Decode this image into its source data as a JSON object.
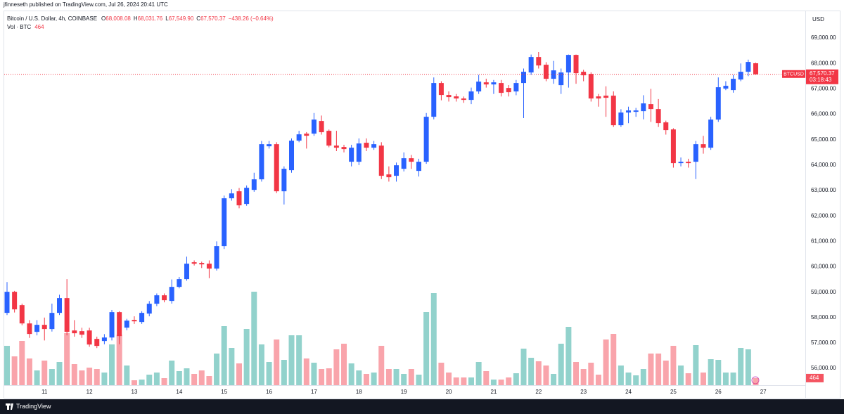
{
  "header": {
    "byline": "jfinneseth published on TradingView.com, Jul 26, 2024 20:41 UTC"
  },
  "footer": {
    "brand": "TradingView"
  },
  "chart_data": {
    "type": "candlestick",
    "legend": {
      "symbol": "Bitcoin / U.S. Dollar, 4h, COINBASE",
      "fields": [
        {
          "label": "O",
          "text": "68,008.08"
        },
        {
          "label": "H",
          "text": "68,031.76"
        },
        {
          "label": "L",
          "text": "67,549.90"
        },
        {
          "label": "C",
          "text": "67,570.37"
        }
      ],
      "change": "−438.26 (−0.64%)",
      "volume_title": "Vol · BTC",
      "volume_text": "464"
    },
    "axis_currency": "USD",
    "price_tag": "BTCUSD",
    "last_price_label": "67,570.37",
    "countdown": "03:18:43",
    "volume_label": "464",
    "up_color": "#2962ff",
    "down_color": "#f23645",
    "volume_up_color": "rgba(38,166,154,0.5)",
    "volume_down_color": "rgba(242,54,69,0.45)",
    "categories": [
      null,
      null,
      null,
      null,
      null,
      "11",
      null,
      null,
      null,
      null,
      null,
      "12",
      null,
      null,
      null,
      null,
      null,
      "13",
      null,
      null,
      null,
      null,
      null,
      "14",
      null,
      null,
      null,
      null,
      null,
      "15",
      null,
      null,
      null,
      null,
      null,
      "16",
      null,
      null,
      null,
      null,
      null,
      "17",
      null,
      null,
      null,
      null,
      null,
      "18",
      null,
      null,
      null,
      null,
      null,
      "19",
      null,
      null,
      null,
      null,
      null,
      "20",
      null,
      null,
      null,
      null,
      null,
      "21",
      null,
      null,
      null,
      null,
      null,
      "22",
      null,
      null,
      null,
      null,
      null,
      "23",
      null,
      null,
      null,
      null,
      null,
      "24",
      null,
      null,
      null,
      null,
      null,
      "25",
      null,
      null,
      null,
      null,
      null,
      "26",
      null,
      null,
      null,
      null,
      null,
      "27"
    ],
    "open": [
      58185,
      59015,
      58489,
      57770,
      57438,
      57715,
      57549,
      58185,
      58766,
      57493,
      57466,
      57493,
      57161,
      57078,
      57216,
      58213,
      57604,
      57908,
      57825,
      58157,
      58545,
      58877,
      58655,
      59208,
      59513,
      60177,
      60149,
      60121,
      59927,
      60813,
      62694,
      62970,
      62472,
      63025,
      63440,
      64740,
      64823,
      62970,
      63800,
      64962,
      65238,
      65238,
      65736,
      65349,
      64768,
      64713,
      64132,
      64132,
      64879,
      64685,
      64768,
      63634,
      63579,
      63855,
      64270,
      63772,
      64132,
      65902,
      67230,
      66760,
      66704,
      66621,
      66566,
      66898,
      67257,
      67174,
      67230,
      67036,
      66898,
      67230,
      67645,
      68253,
      67949,
      67396,
      67147,
      67645,
      68336,
      67672,
      67589,
      66704,
      66732,
      66732,
      65570,
      66068,
      66096,
      66123,
      66400,
      66206,
      65681,
      65404,
      64077,
      64132,
      64132,
      64823,
      64685,
      65791,
      67009,
      66953,
      67368,
      67672,
      68008.08,
      null
    ],
    "high": [
      59400,
      59050,
      58550,
      57900,
      57900,
      58000,
      58550,
      58900,
      59513,
      57900,
      57600,
      57600,
      57250,
      57350,
      58300,
      58250,
      57950,
      58050,
      58250,
      58650,
      58950,
      58950,
      59500,
      59600,
      60400,
      60250,
      60200,
      60250,
      61000,
      62800,
      63050,
      63100,
      63200,
      63700,
      64950,
      64950,
      64900,
      63950,
      65050,
      65350,
      65300,
      66050,
      65950,
      65400,
      65350,
      64800,
      64800,
      65050,
      65050,
      64950,
      64900,
      63950,
      64100,
      64500,
      64400,
      64250,
      66050,
      67450,
      67300,
      66900,
      66800,
      66700,
      67050,
      67550,
      67400,
      67350,
      67350,
      67150,
      67350,
      67800,
      68350,
      68450,
      68050,
      68100,
      67800,
      68350,
      68350,
      67750,
      67650,
      66800,
      67100,
      66900,
      66200,
      66300,
      66250,
      66750,
      67000,
      66600,
      65750,
      65450,
      64300,
      64250,
      64950,
      65150,
      65900,
      67450,
      67300,
      67550,
      68000,
      68150,
      68031.76,
      null
    ],
    "low": [
      58100,
      58200,
      57700,
      57200,
      57300,
      57100,
      57450,
      58100,
      57300,
      57250,
      57200,
      56850,
      56800,
      56950,
      57100,
      56950,
      57500,
      57750,
      57750,
      58050,
      58450,
      58600,
      58550,
      59150,
      59450,
      60050,
      59950,
      59550,
      59850,
      60700,
      62600,
      62300,
      62400,
      62950,
      63350,
      64650,
      62900,
      62450,
      63700,
      64900,
      64650,
      65150,
      65200,
      64700,
      64550,
      64500,
      63950,
      64000,
      64550,
      64600,
      63450,
      63350,
      63350,
      63750,
      63850,
      63550,
      64050,
      65800,
      66550,
      66500,
      66500,
      66450,
      66400,
      66800,
      67050,
      66800,
      66700,
      66700,
      66750,
      65850,
      67550,
      67800,
      67300,
      67200,
      66800,
      67050,
      67200,
      67300,
      66500,
      66300,
      65900,
      65500,
      65500,
      65650,
      65900,
      65800,
      65700,
      65500,
      65200,
      63900,
      63950,
      63900,
      63450,
      64450,
      64600,
      65700,
      66950,
      66850,
      67300,
      67500,
      67549.9,
      null
    ],
    "close": [
      59015,
      58323,
      57770,
      57355,
      57715,
      57549,
      58185,
      58766,
      57438,
      57383,
      57327,
      56940,
      56885,
      57216,
      58213,
      57272,
      57881,
      57853,
      58185,
      58545,
      58877,
      58683,
      59208,
      59513,
      60121,
      60121,
      60094,
      59927,
      60813,
      62694,
      62887,
      62417,
      63108,
      63440,
      64823,
      64823,
      62970,
      63855,
      64962,
      65211,
      65155,
      65791,
      65294,
      64768,
      64685,
      64630,
      64685,
      64851,
      64685,
      64823,
      63579,
      63523,
      63993,
      64270,
      64132,
      64132,
      65902,
      67230,
      66760,
      66677,
      66621,
      66566,
      66898,
      67285,
      67174,
      67257,
      66843,
      66870,
      67230,
      67672,
      68253,
      67921,
      67396,
      67728,
      67645,
      68336,
      67617,
      67534,
      66621,
      66621,
      66649,
      65570,
      66068,
      66151,
      66151,
      66428,
      66206,
      65653,
      65377,
      64077,
      64132,
      64077,
      64823,
      64685,
      65791,
      67064,
      67119,
      67396,
      67672,
      68060,
      67570.37,
      null
    ],
    "volume": [
      2576,
      1886,
      2898,
      1748,
      966,
      1610,
      1058,
      1518,
      3404,
      1380,
      966,
      1150,
      1058,
      828,
      2668,
      3312,
      1288,
      322,
      368,
      690,
      828,
      460,
      1610,
      920,
      1104,
      736,
      966,
      598,
      2070,
      3864,
      2438,
      1426,
      3680,
      6118,
      2668,
      1518,
      2990,
      1656,
      3266,
      3266,
      1748,
      1472,
      1058,
      1104,
      2346,
      2714,
      1426,
      966,
      736,
      828,
      2576,
      1058,
      1058,
      736,
      1058,
      690,
      4784,
      6026,
      1472,
      828,
      506,
      506,
      506,
      1518,
      920,
      368,
      368,
      506,
      782,
      2392,
      1794,
      1564,
      1288,
      736,
      2714,
      3818,
      1518,
      1058,
      1472,
      690,
      2990,
      3358,
      1288,
      828,
      644,
      1058,
      2070,
      2070,
      1610,
      2576,
      1288,
      782,
      2622,
      828,
      1702,
      1656,
      828,
      828,
      2438,
      2346,
      464,
      null
    ],
    "ylim": [
      55340,
      70220
    ],
    "yticks": [
      {
        "value": 56000,
        "label": "56,000.00"
      },
      {
        "value": 57000,
        "label": "57,000.00"
      },
      {
        "value": 58000,
        "label": "58,000.00"
      },
      {
        "value": 59000,
        "label": "59,000.00"
      },
      {
        "value": 60000,
        "label": "60,000.00"
      },
      {
        "value": 61000,
        "label": "61,000.00"
      },
      {
        "value": 62000,
        "label": "62,000.00"
      },
      {
        "value": 63000,
        "label": "63,000.00"
      },
      {
        "value": 64000,
        "label": "64,000.00"
      },
      {
        "value": 65000,
        "label": "65,000.00"
      },
      {
        "value": 66000,
        "label": "66,000.00"
      },
      {
        "value": 67000,
        "label": "67,000.00"
      },
      {
        "value": 68000,
        "label": "68,000.00"
      },
      {
        "value": 69000,
        "label": "69,000.00"
      }
    ]
  }
}
